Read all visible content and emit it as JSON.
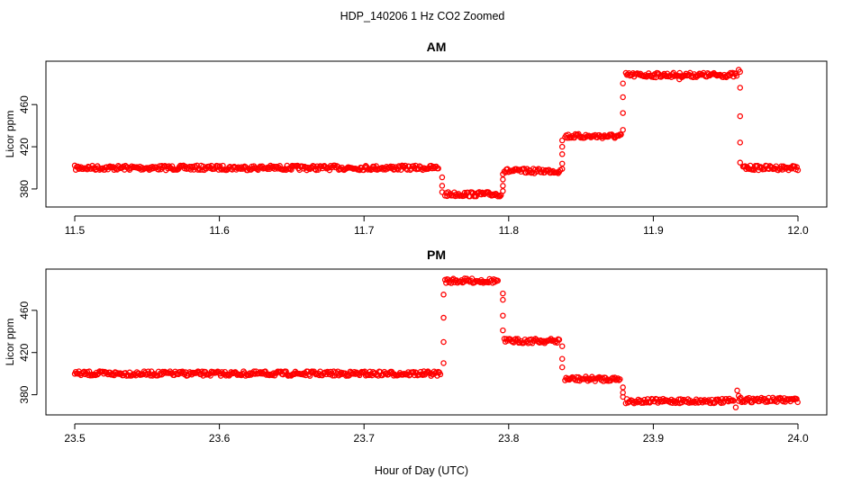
{
  "title": "HDP_140206  1 Hz CO2 Zoomed",
  "xlabel": "Hour of Day (UTC)",
  "colors": {
    "points": "#ff0000",
    "axes": "#000000"
  },
  "chart_data": [
    {
      "type": "scatter",
      "title": "AM",
      "ylabel": "Licor ppm",
      "xlim": [
        11.5,
        12.0
      ],
      "ylim": [
        368,
        496
      ],
      "xticks": [
        "11.5",
        "11.6",
        "11.7",
        "11.8",
        "11.9",
        "12.0"
      ],
      "xtick_values": [
        11.5,
        11.6,
        11.7,
        11.8,
        11.9,
        12.0
      ],
      "yticks": [
        "380",
        "420",
        "460"
      ],
      "ytick_values": [
        380,
        420,
        460
      ],
      "marker": "open-circle",
      "series": [
        {
          "segments": [
            {
              "x": [
                11.5,
                11.752
              ],
              "y": 400
            },
            {
              "x": [
                11.756,
                11.795
              ],
              "y": 375
            },
            {
              "x": [
                11.797,
                11.836
              ],
              "y": 397
            },
            {
              "x": [
                11.839,
                11.878
              ],
              "y": 430
            },
            {
              "x": [
                11.881,
                11.958
              ],
              "y": 488
            },
            {
              "x": [
                11.962,
                12.0
              ],
              "y": 400
            }
          ],
          "transitions": [
            {
              "x": 11.754,
              "y": [
                391,
                383,
                377
              ]
            },
            {
              "x": 11.796,
              "y": [
                378,
                383,
                389,
                394
              ]
            },
            {
              "x": 11.837,
              "y": [
                399,
                404,
                413,
                420,
                426
              ]
            },
            {
              "x": 11.879,
              "y": [
                436,
                452,
                467,
                480
              ]
            },
            {
              "x": 11.96,
              "y": [
                476,
                449,
                424,
                405
              ]
            }
          ],
          "outliers": [
            {
              "x": 11.959,
              "y": 493
            },
            {
              "x": 11.96,
              "y": 491
            },
            {
              "x": 11.918,
              "y": 484
            }
          ]
        }
      ]
    },
    {
      "type": "scatter",
      "title": "PM",
      "ylabel": "Licor ppm",
      "xlim": [
        23.5,
        24.0
      ],
      "ylim": [
        366,
        494
      ],
      "xticks": [
        "23.5",
        "23.6",
        "23.7",
        "23.8",
        "23.9",
        "24.0"
      ],
      "xtick_values": [
        23.5,
        23.6,
        23.7,
        23.8,
        23.9,
        24.0
      ],
      "yticks": [
        "380",
        "420",
        "460"
      ],
      "ytick_values": [
        380,
        420,
        460
      ],
      "marker": "open-circle",
      "series": [
        {
          "segments": [
            {
              "x": [
                23.5,
                23.753
              ],
              "y": 400
            },
            {
              "x": [
                23.756,
                23.793
              ],
              "y": 488
            },
            {
              "x": [
                23.797,
                23.835
              ],
              "y": 431
            },
            {
              "x": [
                23.839,
                23.877
              ],
              "y": 395
            },
            {
              "x": [
                23.881,
                23.956
              ],
              "y": 374
            },
            {
              "x": [
                23.959,
                24.0
              ],
              "y": 375
            }
          ],
          "transitions": [
            {
              "x": 23.755,
              "y": [
                410,
                430,
                453,
                475
              ]
            },
            {
              "x": 23.796,
              "y": [
                476,
                470,
                455,
                441
              ]
            },
            {
              "x": 23.837,
              "y": [
                426,
                414,
                406
              ]
            },
            {
              "x": 23.879,
              "y": [
                387,
                382,
                378
              ]
            }
          ],
          "outliers": [
            {
              "x": 23.958,
              "y": 384
            },
            {
              "x": 23.957,
              "y": 368
            },
            {
              "x": 23.959,
              "y": 379
            }
          ]
        }
      ]
    }
  ]
}
